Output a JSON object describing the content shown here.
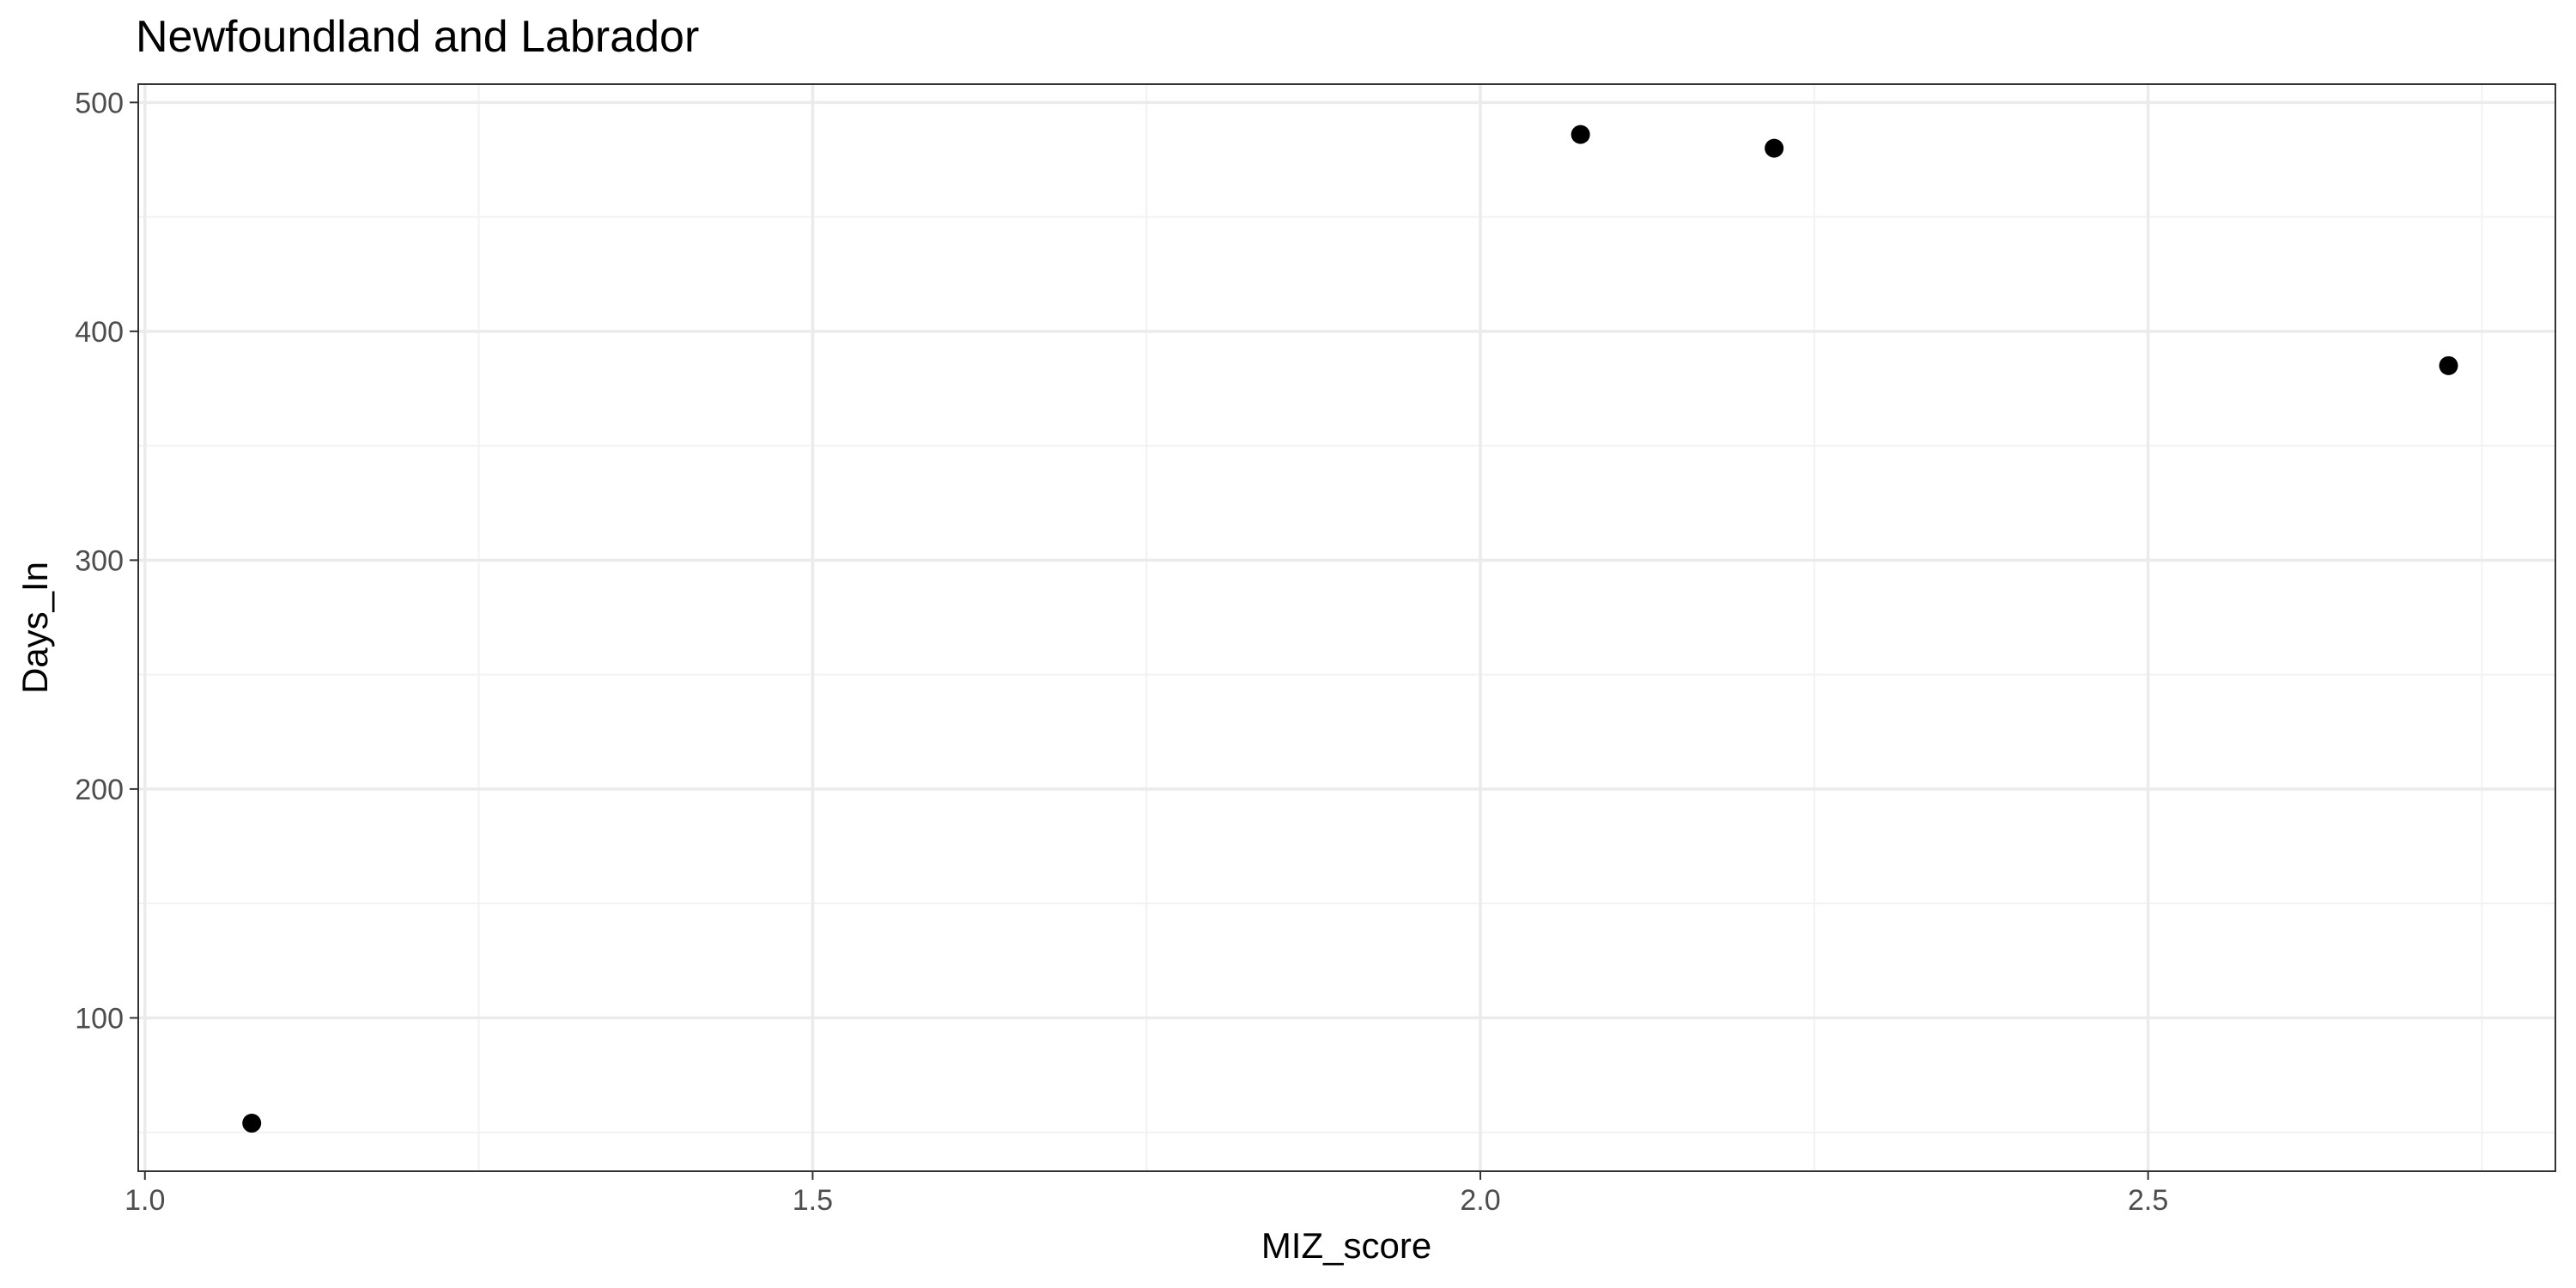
{
  "chart_data": {
    "type": "scatter",
    "title": "Newfoundland and Labrador",
    "xlabel": "MIZ_score",
    "ylabel": "Days_In",
    "xlim": [
      0.995,
      2.805
    ],
    "ylim": [
      33,
      508
    ],
    "x_ticks": [
      1.0,
      1.5,
      2.0,
      2.5
    ],
    "x_tick_labels": [
      "1.0",
      "1.5",
      "2.0",
      "2.5"
    ],
    "x_minor_ticks": [
      1.25,
      1.75,
      2.25,
      2.75
    ],
    "y_ticks": [
      100,
      200,
      300,
      400,
      500
    ],
    "y_tick_labels": [
      "100",
      "200",
      "300",
      "400",
      "500"
    ],
    "y_minor_ticks": [
      50,
      150,
      250,
      350,
      450
    ],
    "grid": true,
    "point_color": "#000000",
    "points": [
      {
        "x": 1.08,
        "y": 54
      },
      {
        "x": 2.075,
        "y": 486
      },
      {
        "x": 2.22,
        "y": 480
      },
      {
        "x": 2.725,
        "y": 385
      }
    ]
  }
}
